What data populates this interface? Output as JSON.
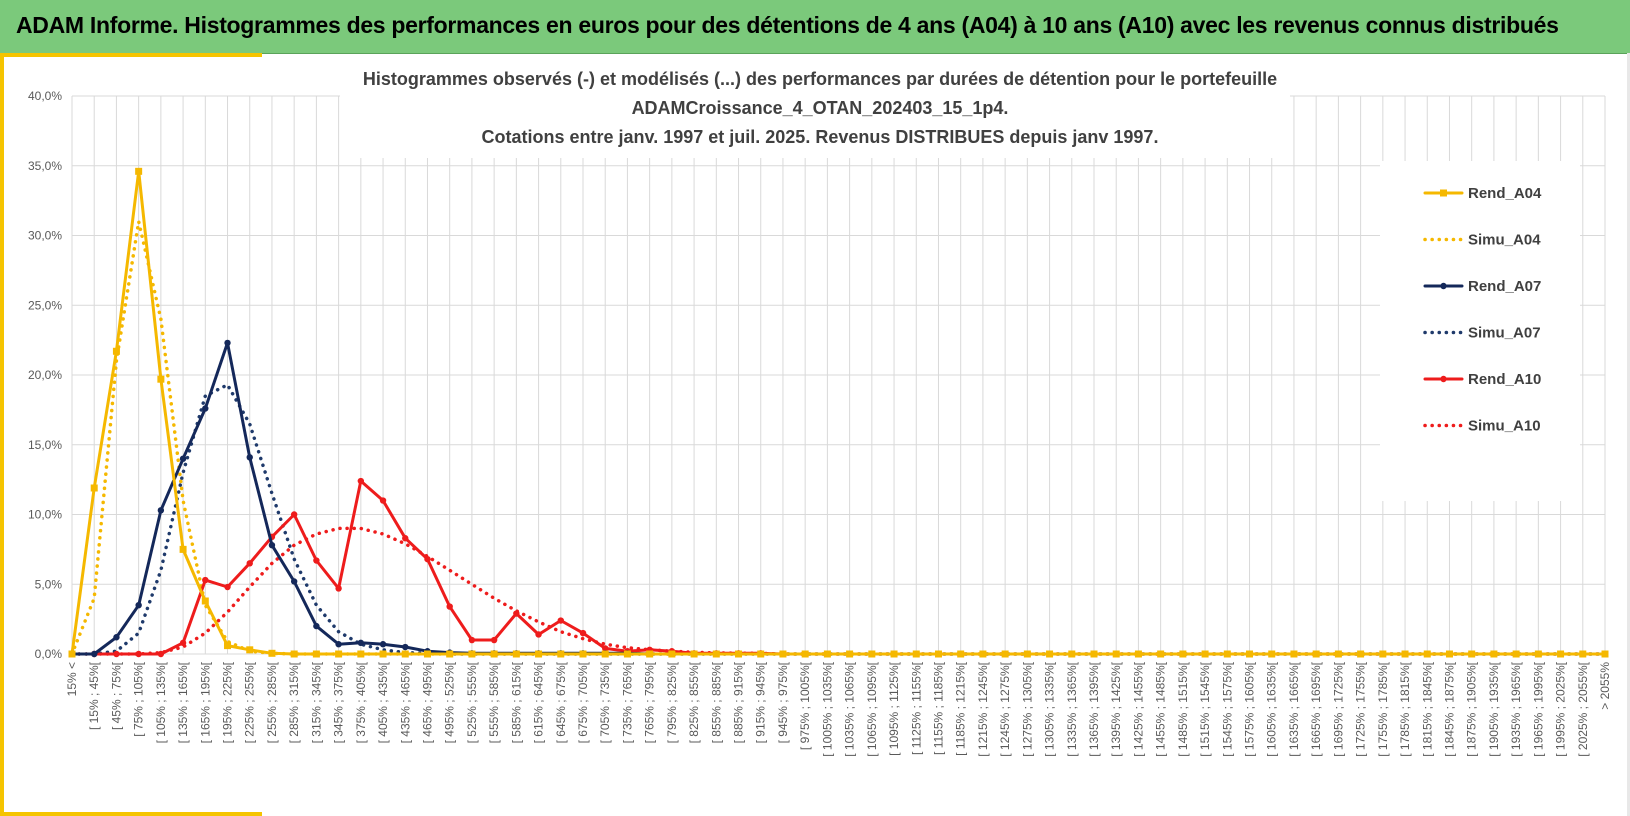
{
  "banner": {
    "title": "ADAM Informe. Histogrammes des performances en euros pour des détentions de 4 ans (A04) à 10 ans (A10) avec les revenus connus distribués",
    "background": "#7bc97b"
  },
  "chart_data": {
    "type": "line",
    "title_lines": [
      "Histogrammes observés (-) et modélisés (...) des performances par durées de détention pour  le portefeuille",
      "ADAMCroissance_4_OTAN_202403_15_1p4.",
      "Cotations entre janv. 1997 et juil. 2025. Revenus DISTRIBUES depuis janv 1997."
    ],
    "ylim": [
      0,
      40
    ],
    "yticks": [
      "0,0%",
      "5,0%",
      "10,0%",
      "15,0%",
      "20,0%",
      "25,0%",
      "30,0%",
      "35,0%",
      "40,0%"
    ],
    "grid": true,
    "legend_position": "right",
    "categories": [
      "15% <",
      "[ 15% ; 45%[",
      "[ 45% ; 75%[",
      "[ 75% ; 105%[",
      "[ 105% ; 135%[",
      "[ 135% ; 165%[",
      "[ 165% ; 195%[",
      "[ 195% ; 225%[",
      "[ 225% ; 255%[",
      "[ 255% ; 285%[",
      "[ 285% ; 315%[",
      "[ 315% ; 345%[",
      "[ 345% ; 375%[",
      "[ 375% ; 405%[",
      "[ 405% ; 435%[",
      "[ 435% ; 465%[",
      "[ 465% ; 495%[",
      "[ 495% ; 525%[",
      "[ 525% ; 555%[",
      "[ 555% ; 585%[",
      "[ 585% ; 615%[",
      "[ 615% ; 645%[",
      "[ 645% ; 675%[",
      "[ 675% ; 705%[",
      "[ 705% ; 735%[",
      "[ 735% ; 765%[",
      "[ 765% ; 795%[",
      "[ 795% ; 825%[",
      "[ 825% ; 855%[",
      "[ 855% ; 885%[",
      "[ 885% ; 915%[",
      "[ 915% ; 945%[",
      "[ 945% ; 975%[",
      "[ 975% ; 1005%[",
      "[ 1005% ; 1035%[",
      "[ 1035% ; 1065%[",
      "[ 1065% ; 1095%[",
      "[ 1095% ; 1125%[",
      "[ 1125% ; 1155%[",
      "[ 1155% ; 1185%[",
      "[ 1185% ; 1215%[",
      "[ 1215% ; 1245%[",
      "[ 1245% ; 1275%[",
      "[ 1275% ; 1305%[",
      "[ 1305% ; 1335%[",
      "[ 1335% ; 1365%[",
      "[ 1365% ; 1395%[",
      "[ 1395% ; 1425%[",
      "[ 1425% ; 1455%[",
      "[ 1455% ; 1485%[",
      "[ 1485% ; 1515%[",
      "[ 1515% ; 1545%[",
      "[ 1545% ; 1575%[",
      "[ 1575% ; 1605%[",
      "[ 1605% ; 1635%[",
      "[ 1635% ; 1665%[",
      "[ 1665% ; 1695%[",
      "[ 1695% ; 1725%[",
      "[ 1725% ; 1755%[",
      "[ 1755% ; 1785%[",
      "[ 1785% ; 1815%[",
      "[ 1815% ; 1845%[",
      "[ 1845% ; 1875%[",
      "[ 1875% ; 1905%[",
      "[ 1905% ; 1935%[",
      "[ 1935% ; 1965%[",
      "[ 1965% ; 1995%[",
      "[ 1995% ; 2025%[",
      "[ 2025% ; 2055%[",
      "> 2055%"
    ],
    "series": [
      {
        "name": "Rend_A04",
        "color": "#f5b800",
        "dashed": false,
        "markers": "square",
        "values": [
          0.0,
          11.9,
          21.7,
          34.6,
          19.7,
          7.5,
          3.8,
          0.6,
          0.3,
          0.05,
          0.0,
          0.0,
          0.0,
          0.0,
          0.0,
          0.0,
          0.0,
          0,
          0,
          0,
          0,
          0,
          0,
          0,
          0,
          0,
          0,
          0,
          0,
          0,
          0,
          0,
          0,
          0,
          0,
          0,
          0,
          0,
          0,
          0,
          0,
          0,
          0,
          0,
          0,
          0,
          0,
          0,
          0,
          0,
          0,
          0,
          0,
          0,
          0,
          0,
          0,
          0,
          0,
          0,
          0,
          0,
          0,
          0,
          0,
          0,
          0,
          0,
          0,
          0
        ]
      },
      {
        "name": "Simu_A04",
        "color": "#f5b800",
        "dashed": true,
        "markers": "none",
        "values": [
          0.0,
          4.0,
          21.0,
          31.0,
          24.0,
          11.0,
          3.5,
          0.9,
          0.2,
          0.05,
          0.0,
          0.0,
          0.0,
          0.0,
          0.0,
          0.0,
          0.0,
          0,
          0,
          0,
          0,
          0,
          0,
          0,
          0,
          0,
          0,
          0,
          0,
          0,
          0,
          0,
          0,
          0,
          0,
          0,
          0,
          0,
          0,
          0,
          0,
          0,
          0,
          0,
          0,
          0,
          0,
          0,
          0,
          0,
          0,
          0,
          0,
          0,
          0,
          0,
          0,
          0,
          0,
          0,
          0,
          0,
          0,
          0,
          0,
          0,
          0,
          0,
          0,
          0
        ]
      },
      {
        "name": "Rend_A07",
        "color": "#14285a",
        "dashed": false,
        "markers": "circle",
        "values": [
          0.0,
          0.0,
          1.2,
          3.5,
          10.3,
          14.0,
          17.6,
          22.3,
          14.1,
          7.8,
          5.2,
          2.0,
          0.7,
          0.8,
          0.7,
          0.5,
          0.2,
          0.1,
          0.05,
          0.05,
          0.05,
          0.05,
          0.05,
          0.05,
          0.05,
          0.05,
          0,
          0,
          0,
          0,
          0,
          0,
          0,
          0,
          0,
          0,
          0,
          0,
          0,
          0,
          0,
          0,
          0,
          0,
          0,
          0,
          0,
          0,
          0,
          0,
          0,
          0,
          0,
          0,
          0,
          0,
          0,
          0,
          0,
          0,
          0,
          0,
          0,
          0,
          0,
          0,
          0,
          0,
          0,
          0
        ]
      },
      {
        "name": "Simu_A07",
        "color": "#1f3a6b",
        "dashed": true,
        "markers": "none",
        "values": [
          0.0,
          0.0,
          0.2,
          1.5,
          6.0,
          13.0,
          18.5,
          19.3,
          16.5,
          11.5,
          6.8,
          3.5,
          1.6,
          0.7,
          0.3,
          0.1,
          0.05,
          0,
          0,
          0,
          0,
          0,
          0,
          0,
          0,
          0,
          0,
          0,
          0,
          0,
          0,
          0,
          0,
          0,
          0,
          0,
          0,
          0,
          0,
          0,
          0,
          0,
          0,
          0,
          0,
          0,
          0,
          0,
          0,
          0,
          0,
          0,
          0,
          0,
          0,
          0,
          0,
          0,
          0,
          0,
          0,
          0,
          0,
          0,
          0,
          0,
          0,
          0,
          0,
          0
        ]
      },
      {
        "name": "Rend_A10",
        "color": "#ee1c1c",
        "dashed": false,
        "markers": "circle",
        "values": [
          0.0,
          0.0,
          0.0,
          0.0,
          0.0,
          0.8,
          5.3,
          4.8,
          6.5,
          8.4,
          10.0,
          6.7,
          4.7,
          12.4,
          11.0,
          8.3,
          6.8,
          3.4,
          1.0,
          1.0,
          2.9,
          1.4,
          2.4,
          1.5,
          0.4,
          0.2,
          0.3,
          0.2,
          0.05,
          0.05,
          0.05,
          0.05,
          0,
          0,
          0,
          0,
          0,
          0,
          0,
          0,
          0,
          0,
          0,
          0,
          0,
          0,
          0,
          0,
          0,
          0,
          0,
          0,
          0,
          0,
          0,
          0,
          0,
          0,
          0,
          0,
          0,
          0,
          0,
          0,
          0,
          0,
          0,
          0,
          0,
          0
        ]
      },
      {
        "name": "Simu_A10",
        "color": "#ee1c1c",
        "dashed": true,
        "markers": "none",
        "values": [
          0.0,
          0.0,
          0.0,
          0.0,
          0.1,
          0.5,
          1.5,
          3.0,
          4.8,
          6.5,
          7.8,
          8.6,
          9.0,
          9.0,
          8.6,
          7.9,
          7.0,
          6.0,
          5.0,
          4.0,
          3.1,
          2.3,
          1.6,
          1.1,
          0.7,
          0.45,
          0.3,
          0.2,
          0.12,
          0.08,
          0.05,
          0.05,
          0,
          0,
          0,
          0,
          0,
          0,
          0,
          0,
          0,
          0,
          0,
          0,
          0,
          0,
          0,
          0,
          0,
          0,
          0,
          0,
          0,
          0,
          0,
          0,
          0,
          0,
          0,
          0,
          0,
          0,
          0,
          0,
          0,
          0,
          0,
          0,
          0,
          0
        ]
      }
    ]
  }
}
